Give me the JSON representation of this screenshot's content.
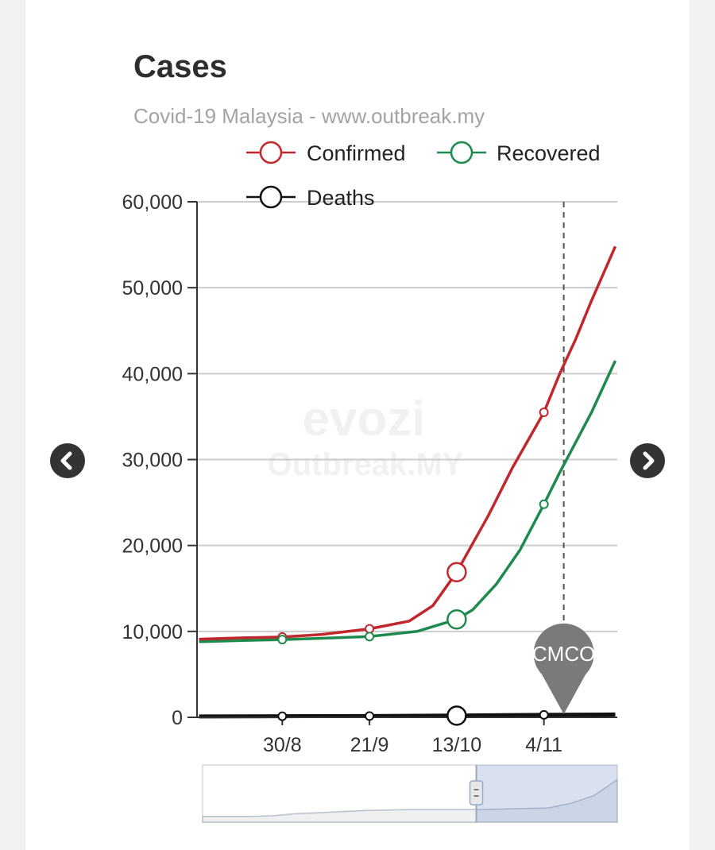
{
  "card": {
    "title": "Cases",
    "subtitle": "Covid-19 Malaysia - www.outbreak.my"
  },
  "watermark": {
    "brand": "evozi",
    "site": "Outbreak.MY"
  },
  "nav": {
    "prev_icon": "chevron-left-icon",
    "next_icon": "chevron-right-icon"
  },
  "chart_data": {
    "type": "line",
    "title": "Cases",
    "subtitle": "Covid-19 Malaysia - www.outbreak.my",
    "x_ticks": [
      {
        "label": "30/8",
        "day": 10
      },
      {
        "label": "21/9",
        "day": 32
      },
      {
        "label": "13/10",
        "day": 54
      },
      {
        "label": "4/11",
        "day": 76
      }
    ],
    "x_range": [
      -11.5,
      94.5
    ],
    "ylim": [
      0,
      60000
    ],
    "y_ticks": [
      0,
      10000,
      20000,
      30000,
      40000,
      50000,
      60000
    ],
    "y_tick_labels": [
      "0",
      "10,000",
      "20,000",
      "30,000",
      "40,000",
      "50,000",
      "60,000"
    ],
    "grid": true,
    "legend_position": "top",
    "series": [
      {
        "name": "Confirmed",
        "color": "#c0282d",
        "values": [
          [
            -11,
            9100
          ],
          [
            0,
            9250
          ],
          [
            10,
            9350
          ],
          [
            20,
            9650
          ],
          [
            32,
            10300
          ],
          [
            42,
            11200
          ],
          [
            48,
            13000
          ],
          [
            54,
            16900
          ],
          [
            62,
            23500
          ],
          [
            68,
            29000
          ],
          [
            76,
            35500
          ],
          [
            80,
            40000
          ],
          [
            84,
            44000
          ],
          [
            88,
            48500
          ],
          [
            94,
            54800
          ]
        ],
        "markers": [
          [
            10,
            9350
          ],
          [
            32,
            10300
          ],
          [
            76,
            35500
          ]
        ],
        "highlight": [
          54,
          16900
        ]
      },
      {
        "name": "Recovered",
        "color": "#1e8a4e",
        "values": [
          [
            -11,
            8800
          ],
          [
            0,
            8950
          ],
          [
            10,
            9050
          ],
          [
            20,
            9200
          ],
          [
            32,
            9400
          ],
          [
            44,
            10000
          ],
          [
            54,
            11400
          ],
          [
            58,
            12500
          ],
          [
            64,
            15500
          ],
          [
            70,
            19500
          ],
          [
            76,
            24800
          ],
          [
            80,
            28500
          ],
          [
            84,
            32000
          ],
          [
            88,
            35500
          ],
          [
            94,
            41500
          ]
        ],
        "markers": [
          [
            10,
            9050
          ],
          [
            32,
            9400
          ],
          [
            76,
            24800
          ]
        ],
        "highlight": [
          54,
          11400
        ]
      },
      {
        "name": "Deaths",
        "color": "#111111",
        "values": [
          [
            -11,
            100
          ],
          [
            10,
            130
          ],
          [
            32,
            150
          ],
          [
            54,
            200
          ],
          [
            76,
            290
          ],
          [
            94,
            330
          ]
        ],
        "markers": [
          [
            10,
            130
          ],
          [
            32,
            150
          ],
          [
            76,
            290
          ]
        ],
        "highlight": [
          54,
          200
        ]
      }
    ],
    "annotations": [
      {
        "label": "CMCO",
        "day": 81,
        "type": "vertical-dashed-line"
      }
    ],
    "navigator": {
      "selection_start": 0.66,
      "selection_end": 1.0,
      "values": [
        0.05,
        0.05,
        0.05,
        0.06,
        0.1,
        0.12,
        0.14,
        0.16,
        0.17,
        0.18,
        0.18,
        0.18,
        0.18,
        0.19,
        0.2,
        0.21,
        0.3,
        0.45,
        0.75
      ]
    }
  }
}
